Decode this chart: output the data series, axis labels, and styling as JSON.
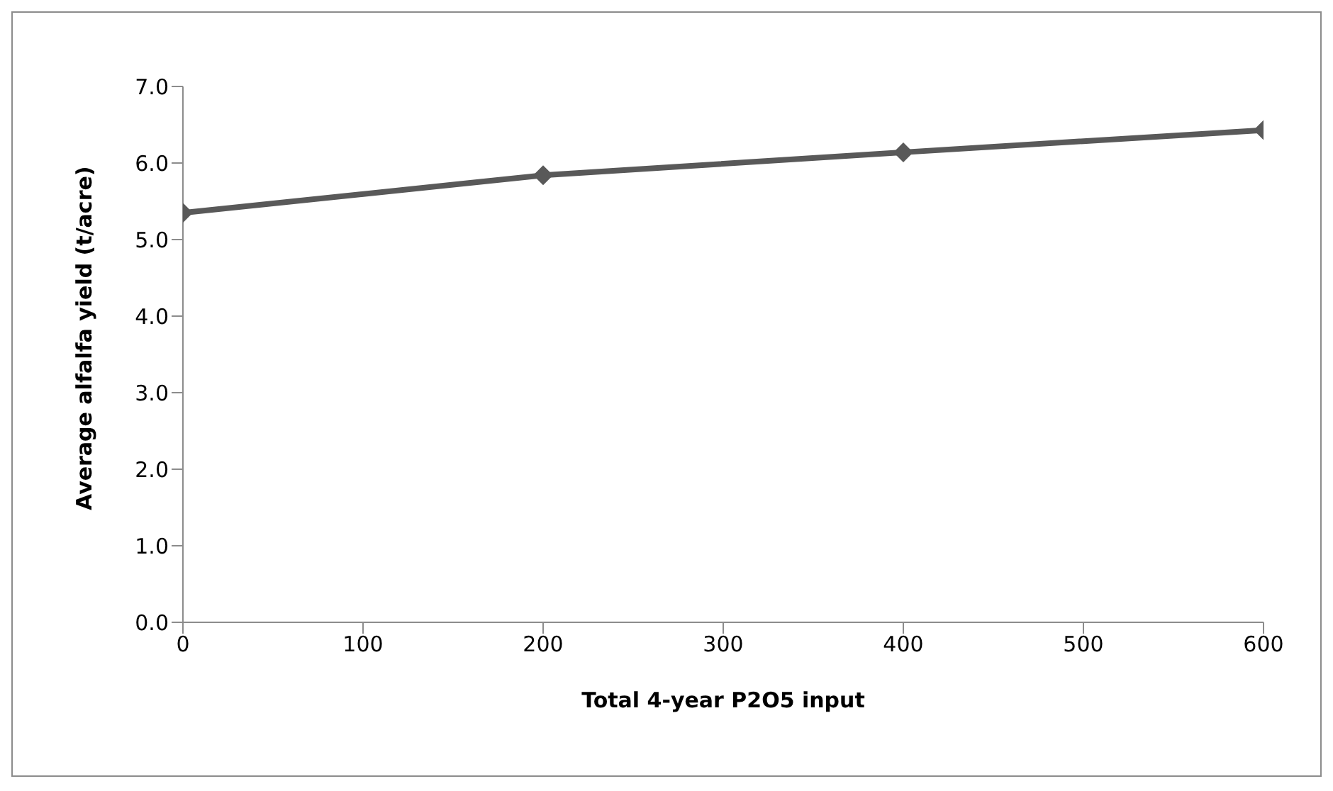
{
  "chart_data": {
    "type": "line",
    "xlabel": "Total 4-year P2O5 input",
    "ylabel": "Average alfalfa yield (t/acre)",
    "x": [
      0,
      200,
      400,
      600
    ],
    "series": [
      {
        "color": "#595959",
        "values": [
          5.35,
          5.84,
          6.14,
          6.43
        ]
      }
    ],
    "xlim": [
      0,
      600
    ],
    "xticks": [
      0,
      100,
      200,
      300,
      400,
      500,
      600
    ],
    "ylim": [
      0,
      7
    ],
    "yticks": [
      {
        "value": 0,
        "label": "0.0"
      },
      {
        "value": 1,
        "label": "1.0"
      },
      {
        "value": 2,
        "label": "2.0"
      },
      {
        "value": 3,
        "label": "3.0"
      },
      {
        "value": 4,
        "label": "4.0"
      },
      {
        "value": 5,
        "label": "5.0"
      },
      {
        "value": 6,
        "label": "6.0"
      },
      {
        "value": 7,
        "label": "7.0"
      }
    ],
    "grid": false,
    "legend": false,
    "marker": "diamond",
    "line_style": "solid"
  }
}
